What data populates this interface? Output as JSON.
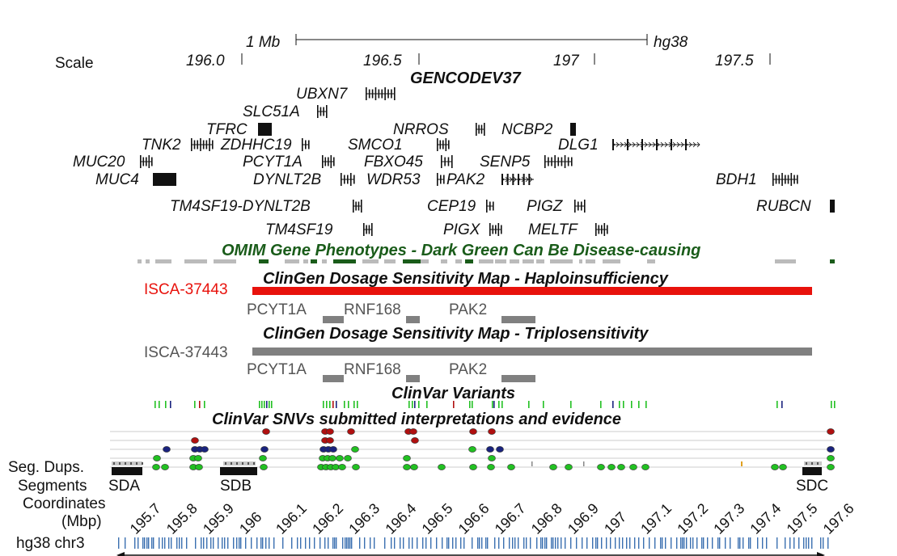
{
  "scale": {
    "label": "Scale",
    "bar_label": "1 Mb",
    "assembly": "hg38",
    "ticks": [
      "196.0",
      "196.5",
      "197",
      "197.5"
    ]
  },
  "gencode": {
    "title": "GENCODEV37",
    "genes": [
      "UBXN7",
      "SLC51A",
      "TFRC",
      "NRROS",
      "NCBP2",
      "TNK2",
      "ZDHHC19",
      "SMCO1",
      "DLG1",
      "MUC20",
      "PCYT1A",
      "FBXO45",
      "SENP5",
      "MUC4",
      "DYNLT2B",
      "WDR53",
      "PAK2",
      "BDH1",
      "TM4SF19-DYNLT2B",
      "CEP19",
      "PIGZ",
      "RUBCN",
      "TM4SF19",
      "PIGX",
      "MELTF"
    ]
  },
  "omim": {
    "title": "OMIM Gene Phenotypes - Dark Green Can Be Disease-causing",
    "color": "#1a5c1a"
  },
  "haplo": {
    "title": "ClinGen Dosage Sensitivity Map - Haploinsufficiency",
    "region": "ISCA-37443",
    "color": "#e8120c",
    "genes": [
      "PCYT1A",
      "RNF168",
      "PAK2"
    ]
  },
  "triplo": {
    "title": "ClinGen Dosage Sensitivity Map - Triplosensitivity",
    "region": "ISCA-37443",
    "color": "#808080",
    "genes": [
      "PCYT1A",
      "RNF168",
      "PAK2"
    ]
  },
  "clinvar": {
    "title": "ClinVar Variants"
  },
  "clinvar_snv": {
    "title": "ClinVar SNVs submitted interpretations and evidence",
    "colors": {
      "pathogenic": "#b01010",
      "uncertain": "#1a237e",
      "benign": "#22c022"
    }
  },
  "tracks": {
    "seg_dups": "Seg. Dups.",
    "segments": "Segments",
    "segment_names": [
      "SDA",
      "SDB",
      "SDC"
    ],
    "coordinates_line1": "Coordinates",
    "coordinates_line2": "(Mbp)",
    "coordinate_ticks": [
      "195.7",
      "195.8",
      "195.9",
      "196",
      "196.1",
      "196.2",
      "196.3",
      "196.4",
      "196.5",
      "196.6",
      "196.7",
      "196.8",
      "196.9",
      "197",
      "197.1",
      "197.2",
      "197.3",
      "197.4",
      "197.5",
      "197.6"
    ],
    "chrom_label": "hg38 chr3"
  }
}
